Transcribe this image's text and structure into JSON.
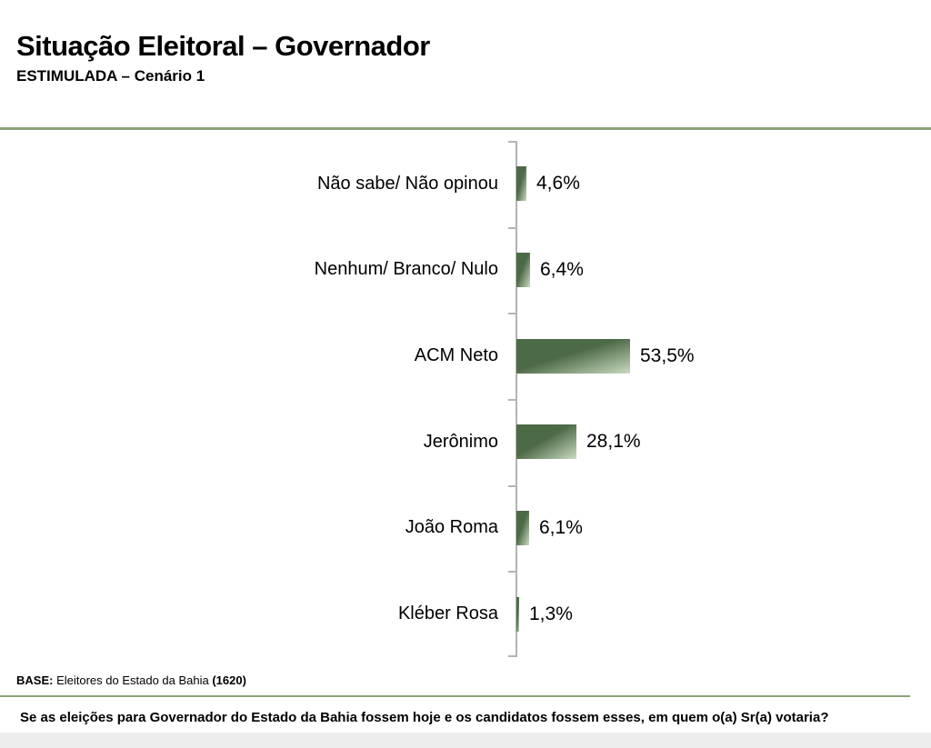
{
  "header": {
    "title": "Situação Eleitoral – Governador",
    "subtitle": "ESTIMULADA – Cenário 1"
  },
  "chart_data": {
    "type": "bar",
    "orientation": "horizontal",
    "categories": [
      "Não sabe/ Não opinou",
      "Nenhum/ Branco/ Nulo",
      "ACM Neto",
      "Jerônimo",
      "João Roma",
      "Kléber Rosa"
    ],
    "values": [
      4.6,
      6.4,
      53.5,
      28.1,
      6.1,
      1.3
    ],
    "value_labels": [
      "4,6%",
      "6,4%",
      "53,5%",
      "28,1%",
      "6,1%",
      "1,3%"
    ],
    "title": "Situação Eleitoral – Governador",
    "xlabel": "",
    "ylabel": "",
    "xlim": [
      0,
      60
    ],
    "grid": false,
    "legend": "none",
    "bar_color_dark": "#4d6a47",
    "bar_color_light": "#cadbc0",
    "axis_color": "#b4b4b4"
  },
  "footer": {
    "base_prefix": "BASE:",
    "base_text": " Eleitores do Estado da Bahia ",
    "base_count": "(1620)",
    "question": "Se as eleições para Governador do Estado da Bahia fossem hoje e os candidatos fossem esses, em quem o(a) Sr(a) votaria?"
  },
  "style": {
    "separator_color": "#8da37a"
  }
}
